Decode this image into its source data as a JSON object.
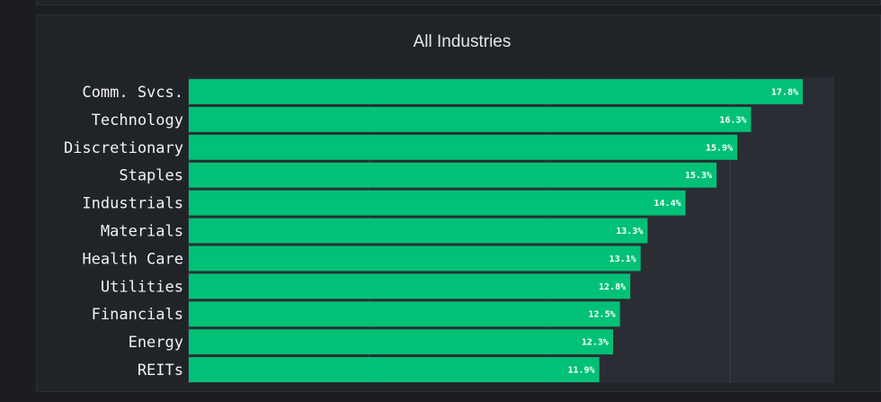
{
  "chart_data": {
    "type": "bar",
    "orientation": "horizontal",
    "title": "All Industries",
    "categories": [
      "Comm. Svcs.",
      "Technology",
      "Discretionary",
      "Staples",
      "Industrials",
      "Materials",
      "Health Care",
      "Utilities",
      "Financials",
      "Energy",
      "REITs"
    ],
    "values": [
      17.8,
      16.3,
      15.9,
      15.3,
      14.4,
      13.3,
      13.1,
      12.8,
      12.5,
      12.3,
      11.9
    ],
    "value_labels": [
      "17.8%",
      "16.3%",
      "15.9%",
      "15.3%",
      "14.4%",
      "13.3%",
      "13.1%",
      "12.8%",
      "12.5%",
      "12.3%",
      "11.9%"
    ],
    "xlim": [
      0,
      17.8
    ],
    "grid": true,
    "colors": {
      "bar": "#00c176",
      "plot_bg": "#2a2d34",
      "grid": "#3a3e46",
      "label": "#ffffff"
    }
  }
}
